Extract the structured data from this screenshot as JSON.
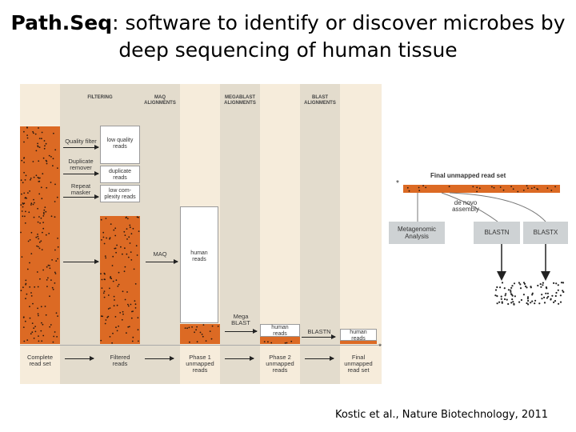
{
  "title": {
    "bold": "Path.Seq",
    "line1_rest": ": software to identify or discover microbes by",
    "line2": "deep sequencing of human tissue"
  },
  "columns": {
    "filtering": "FILTERING",
    "maq": "MAQ\nALIGNMENTS",
    "megablast": "MEGABLAST\nALIGNMENTS",
    "blast": "BLAST\nALIGNMENTS"
  },
  "filters": [
    {
      "step": "Quality filter",
      "removed": "low quality\nreads"
    },
    {
      "step": "Duplicate\nremover",
      "removed": "duplicate\nreads"
    },
    {
      "step": "Repeat\nmasker",
      "removed": "low com-\nplexity reads"
    }
  ],
  "maq_label": "MAQ",
  "maq_removed": "human\nreads",
  "megablast_label": "Mega\nBLAST",
  "megablast_removed": "human\nreads",
  "blastn_label": "BLASTN",
  "blastn_removed": "human\nreads",
  "stages": [
    "Complete\nread set",
    "Filtered\nreads",
    "Phase 1\nunmapped\nreads",
    "Phase 2\nunmapped\nreads",
    "Final\nunmapped\nread set"
  ],
  "asterisk": "*",
  "right": {
    "final_label": "Final unmapped read set",
    "asterisk": "*",
    "denovo": "de novo\nassembly",
    "metagenomic": "Metagenomic\nAnalysis",
    "blastn": "BLASTN",
    "blastx": "BLASTX"
  },
  "citation": "Kostic et al., Nature Biotechnology, 2011",
  "colors": {
    "reads": "#dc6a24",
    "column_light": "#f6ecdb",
    "column_dark": "#e3dccd",
    "analysis_box": "#ced2d4"
  }
}
